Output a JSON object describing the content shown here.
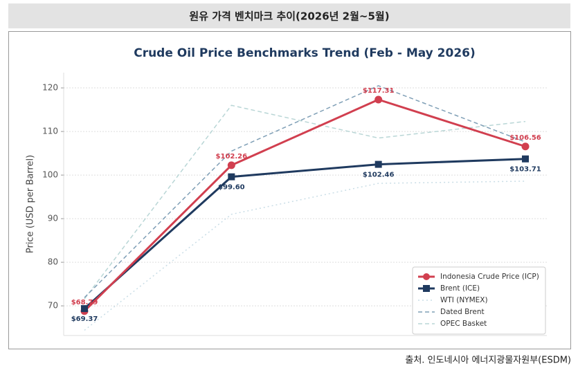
{
  "header": {
    "title": "원유 가격 벤치마크 추이(2026년 2월~5월)"
  },
  "chart_data": {
    "type": "line",
    "title": "Crude Oil Price Benchmarks Trend (Feb - May 2026)",
    "y_label": "Price (USD per Barrel)",
    "categories": [
      null,
      null,
      null,
      null
    ],
    "series": [
      {
        "name": "Indonesia Crude Price (ICP)",
        "color": "#d13f4f",
        "style": "solid",
        "marker": "circle",
        "values": [
          68.79,
          102.26,
          117.31,
          106.56
        ],
        "value_labels": [
          "$68.79",
          "$102.26",
          "$117.31",
          "$106.56"
        ]
      },
      {
        "name": "Brent (ICE)",
        "color": "#1f3a5f",
        "style": "solid",
        "marker": "square",
        "values": [
          69.37,
          99.6,
          102.46,
          103.71
        ],
        "value_labels": [
          "$69.37",
          "$99.60",
          "$102.46",
          "$103.71"
        ]
      },
      {
        "name": "WTI (NYMEX)",
        "color": "#c9dde6",
        "style": "dotted",
        "marker": "none",
        "values": [
          64.4,
          91,
          98.1,
          98.6
        ]
      },
      {
        "name": "Dated Brent",
        "color": "#7f9fb6",
        "style": "dashed",
        "marker": "none",
        "values": [
          71.9,
          105.5,
          120.5,
          107.6
        ]
      },
      {
        "name": "OPEC Basket",
        "color": "#b9d6d6",
        "style": "dashed",
        "marker": "none",
        "values": [
          71.6,
          116,
          108.5,
          112.3
        ]
      }
    ],
    "ylim": [
      63.2,
      123.5
    ],
    "yticks": [
      70,
      80,
      90,
      100,
      110,
      120
    ],
    "grid": true,
    "legend": "lower right"
  },
  "source": "출처. 인도네시아 에너지광물자원부(ESDM)"
}
